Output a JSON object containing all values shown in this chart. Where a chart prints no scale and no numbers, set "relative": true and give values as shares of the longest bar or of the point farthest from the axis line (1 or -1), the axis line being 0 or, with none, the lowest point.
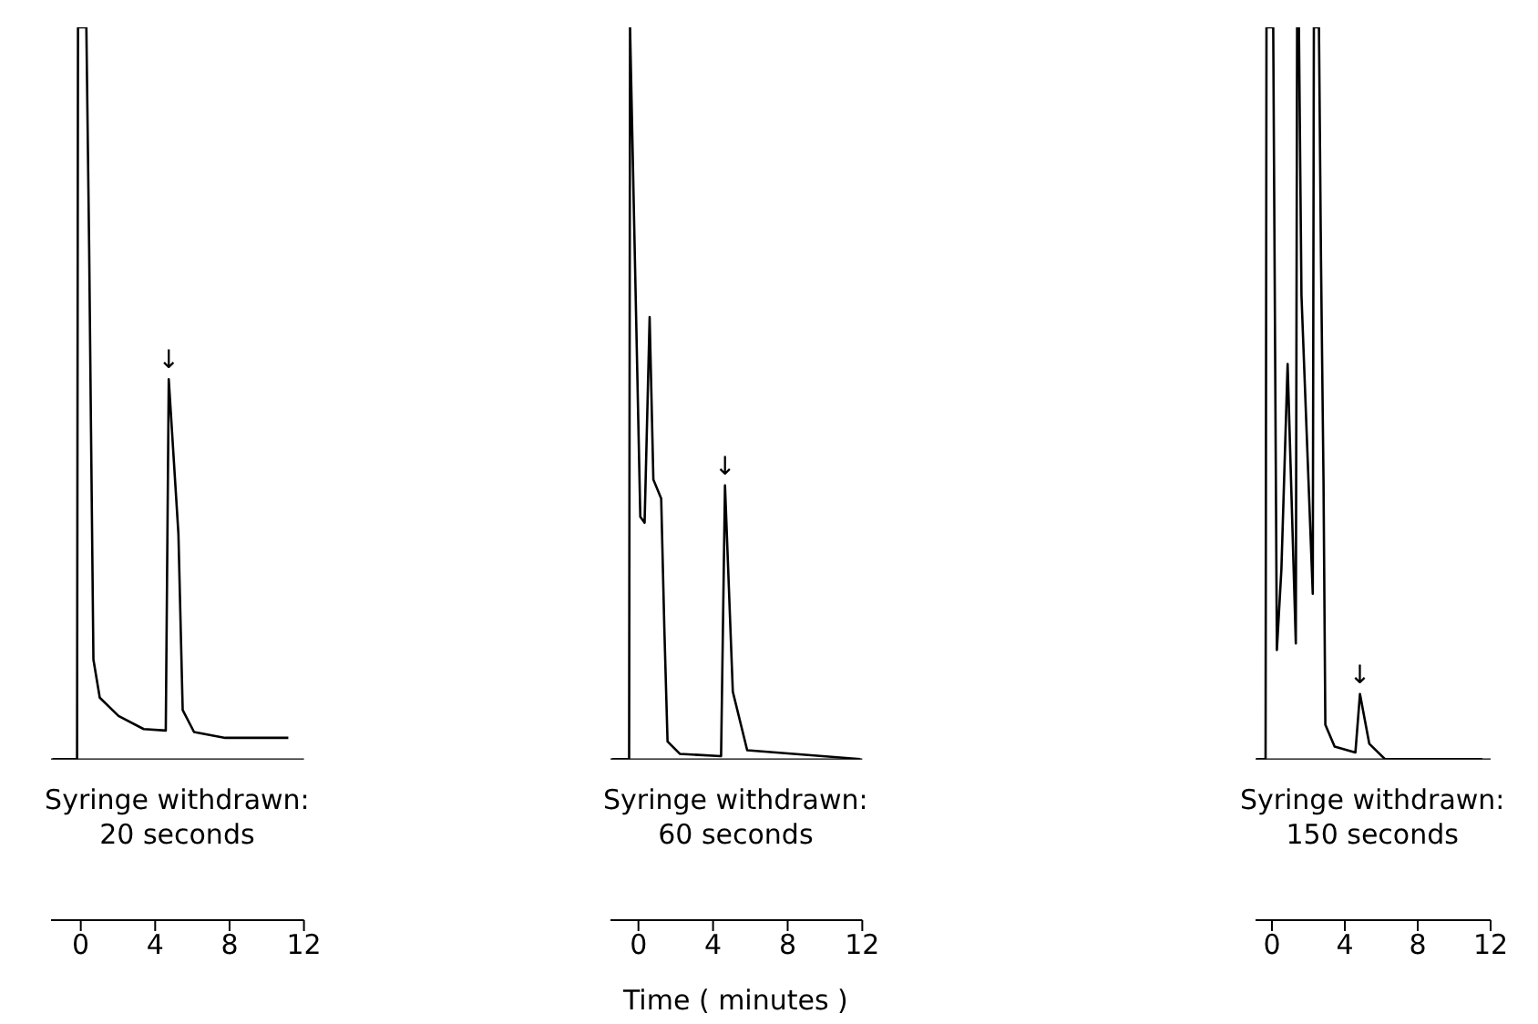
{
  "chart_data": [
    {
      "type": "line",
      "relative": true,
      "xlim": [
        -1.6,
        12
      ],
      "xticks": [
        0,
        4,
        8,
        12
      ],
      "marker": "none",
      "line_style": "solid",
      "annotations": [
        "Syringe withdrawn:",
        "20 seconds",
        {
          "text": "↓",
          "x": 4.73,
          "y": 0.519
        }
      ],
      "series": [
        {
          "color": "#000000",
          "x": [
            -1.52,
            -0.2,
            -0.15,
            0.3,
            0.45,
            0.55,
            0.68,
            1.02,
            2.03,
            3.38,
            4.57,
            4.73,
            5.25,
            5.48,
            6.09,
            7.77,
            11.16
          ],
          "values": [
            0,
            0,
            1,
            1,
            0.7,
            0.45,
            0.136,
            0.084,
            0.059,
            0.041,
            0.039,
            0.519,
            0.308,
            0.067,
            0.037,
            0.029,
            0.029
          ]
        }
      ]
    },
    {
      "type": "line",
      "relative": true,
      "xlim": [
        -1.5,
        12
      ],
      "xticks": [
        0,
        4,
        8,
        12
      ],
      "xlabel": "Time  ( minutes )",
      "marker": "none",
      "line_style": "solid",
      "annotations": [
        "Syringe withdrawn:",
        "60 seconds",
        {
          "text": "↓",
          "x": 4.64,
          "y": 0.374
        }
      ],
      "series": [
        {
          "color": "#000000",
          "x": [
            -1.42,
            -0.5,
            -0.45,
            0.1,
            0.33,
            0.6,
            0.8,
            1.22,
            1.39,
            1.56,
            2.23,
            4.43,
            4.64,
            5.06,
            5.83,
            11.9
          ],
          "values": [
            0,
            0,
            1,
            0.331,
            0.323,
            0.604,
            0.382,
            0.356,
            0.177,
            0.024,
            0.007,
            0.004,
            0.374,
            0.092,
            0.012,
            0
          ]
        }
      ]
    },
    {
      "type": "line",
      "relative": true,
      "xlim": [
        -0.9,
        12
      ],
      "xticks": [
        0,
        4,
        8,
        12
      ],
      "marker": "none",
      "line_style": "solid",
      "annotations": [
        "Syringe withdrawn:",
        "150 seconds",
        {
          "text": "↓",
          "x": 4.83,
          "y": 0.089
        }
      ],
      "series": [
        {
          "color": "#000000",
          "x": [
            -0.86,
            -0.35,
            -0.3,
            0.07,
            0.27,
            0.52,
            0.86,
            1.31,
            1.38,
            1.48,
            1.62,
            2.24,
            2.3,
            2.58,
            2.69,
            2.83,
            2.93,
            3.44,
            4.58,
            4.83,
            5.34,
            6.2,
            11.55
          ],
          "values": [
            0,
            0,
            1,
            1,
            0.149,
            0.26,
            0.54,
            0.158,
            1,
            1,
            0.634,
            0.226,
            1,
            1,
            0.685,
            0.379,
            0.047,
            0.017,
            0.009,
            0.089,
            0.021,
            0,
            0
          ]
        }
      ]
    }
  ]
}
